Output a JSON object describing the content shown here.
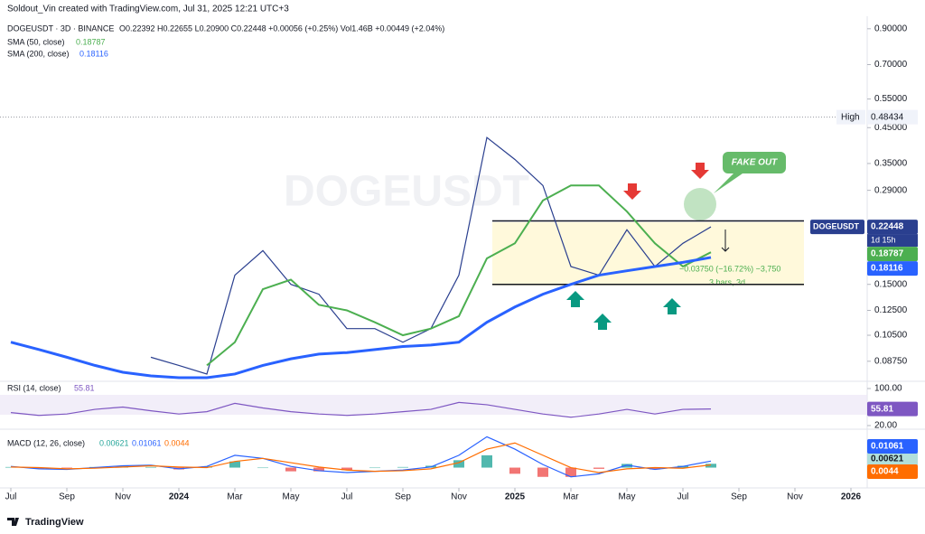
{
  "header": {
    "credit": "Soldout_Vin created with TradingView.com, Jul 31, 2025 12:21 UTC+3",
    "symbol": "DOGEUSDT · 3D · BINANCE",
    "ohlc": "O0.22392 H0.22655 L0.20900 C0.22448 +0.00056 (+0.25%) Vol1.46B +0.00449 (+2.04%)"
  },
  "footer": "TradingView",
  "chart_data": [
    {
      "type": "line",
      "watermark": "DOGEUSDT",
      "log_scale": true,
      "x": [
        "2023-07",
        "2023-08",
        "2023-09",
        "2023-10",
        "2023-11",
        "2023-12",
        "2024-01",
        "2024-02",
        "2024-03",
        "2024-04",
        "2024-05",
        "2024-06",
        "2024-07",
        "2024-08",
        "2024-09",
        "2024-10",
        "2024-11",
        "2024-12",
        "2025-01",
        "2025-02",
        "2025-03",
        "2025-04",
        "2025-05",
        "2025-06",
        "2025-07",
        "2025-08"
      ],
      "xticks": [
        {
          "value": "2023-07",
          "label": "Jul"
        },
        {
          "value": "2023-09",
          "label": "Sep"
        },
        {
          "value": "2023-11",
          "label": "Nov"
        },
        {
          "value": "2024-01",
          "label": "2024"
        },
        {
          "value": "2024-03",
          "label": "Mar"
        },
        {
          "value": "2024-05",
          "label": "May"
        },
        {
          "value": "2024-07",
          "label": "Jul"
        },
        {
          "value": "2024-09",
          "label": "Sep"
        },
        {
          "value": "2024-11",
          "label": "Nov"
        },
        {
          "value": "2025-01",
          "label": "2025"
        },
        {
          "value": "2025-03",
          "label": "Mar"
        },
        {
          "value": "2025-05",
          "label": "May"
        },
        {
          "value": "2025-07",
          "label": "Jul"
        },
        {
          "value": "2025-09",
          "label": "Sep"
        },
        {
          "value": "2025-11",
          "label": "Nov"
        },
        {
          "value": "2026-01",
          "label": "2026"
        }
      ],
      "ylim": [
        0.077,
        0.97
      ],
      "yticks": [
        {
          "value": 0.9,
          "label": "0.90000"
        },
        {
          "value": 0.7,
          "label": "0.70000"
        },
        {
          "value": 0.55,
          "label": "0.55000"
        },
        {
          "value": 0.45,
          "label": "0.45000"
        },
        {
          "value": 0.35,
          "label": "0.35000"
        },
        {
          "value": 0.29,
          "label": "0.29000"
        },
        {
          "value": 0.15,
          "label": "0.15000"
        },
        {
          "value": 0.125,
          "label": "0.12500"
        },
        {
          "value": 0.105,
          "label": "0.10500"
        },
        {
          "value": 0.0875,
          "label": "0.08750"
        }
      ],
      "series": [
        {
          "name": "DOGEUSDT",
          "color": "#2a3f8f",
          "values": [
            null,
            null,
            null,
            null,
            null,
            0.09,
            0.085,
            0.08,
            0.16,
            0.19,
            0.15,
            0.14,
            0.11,
            0.11,
            0.1,
            0.11,
            0.16,
            0.42,
            0.36,
            0.3,
            0.17,
            0.16,
            0.22,
            0.17,
            0.2,
            0.22448
          ]
        },
        {
          "name": "SMA (50, close)",
          "color": "#4caf50",
          "values": [
            null,
            null,
            null,
            null,
            null,
            null,
            null,
            0.085,
            0.1,
            0.145,
            0.155,
            0.13,
            0.125,
            0.115,
            0.105,
            0.11,
            0.12,
            0.18,
            0.2,
            0.27,
            0.3,
            0.3,
            0.25,
            0.2,
            0.17,
            0.18787
          ]
        },
        {
          "name": "SMA (200, close)",
          "color": "#2962ff",
          "values": [
            0.1,
            0.095,
            0.09,
            0.085,
            0.081,
            0.079,
            0.078,
            0.078,
            0.08,
            0.085,
            0.089,
            0.092,
            0.093,
            0.095,
            0.097,
            0.098,
            0.1,
            0.115,
            0.128,
            0.14,
            0.15,
            0.16,
            0.165,
            0.17,
            0.175,
            0.18116
          ]
        }
      ],
      "high": {
        "label": "High",
        "value": 0.48434
      },
      "levels": [
        0.234,
        0.15
      ],
      "countdown": "1d 15h",
      "annotations": {
        "fake_out": "FAKE OUT",
        "measure": "−0.03750 (−16.72%) −3,750",
        "bars": "3 bars, 3d"
      }
    },
    {
      "type": "line",
      "title": "RSI (14, close)",
      "ylim": [
        20,
        100
      ],
      "yticks": [
        {
          "value": 100,
          "label": "100.00"
        },
        {
          "value": 20,
          "label": "20.00"
        }
      ],
      "series": [
        {
          "color": "#7e57c2",
          "values": [
            48,
            42,
            45,
            55,
            60,
            52,
            45,
            50,
            68,
            58,
            50,
            45,
            42,
            45,
            50,
            55,
            70,
            65,
            55,
            45,
            38,
            45,
            55,
            45,
            55,
            55.81
          ]
        }
      ]
    },
    {
      "type": "line",
      "title": "MACD (12, 26, close)",
      "ylim": [
        -0.03,
        0.055
      ],
      "series": [
        {
          "kind": "histogram",
          "color": "#26a69a",
          "negative_color": "#ef5350",
          "values": [
            0.001,
            -0.002,
            -0.001,
            0.001,
            0.002,
            0.001,
            -0.003,
            0.002,
            0.01,
            0,
            -0.006,
            -0.006,
            -0.004,
            0,
            0.001,
            0.003,
            0.012,
            0.02,
            -0.01,
            -0.015,
            -0.015,
            -0.002,
            0.006,
            -0.003,
            0.003,
            0.00621
          ]
        },
        {
          "color": "#2962ff",
          "values": [
            0.002,
            -0.002,
            -0.003,
            0,
            0.003,
            0.004,
            -0.002,
            0.002,
            0.02,
            0.015,
            0.002,
            -0.005,
            -0.008,
            -0.006,
            -0.004,
            0.001,
            0.02,
            0.05,
            0.03,
            0.005,
            -0.015,
            -0.01,
            0.004,
            -0.003,
            0.002,
            0.01061
          ]
        },
        {
          "color": "#ff6d00",
          "values": [
            0.001,
            0,
            -0.002,
            -0.001,
            0.001,
            0.003,
            0.001,
            0,
            0.01,
            0.015,
            0.008,
            0.001,
            -0.004,
            -0.006,
            -0.005,
            -0.002,
            0.008,
            0.03,
            0.04,
            0.02,
            0,
            -0.008,
            -0.002,
            0,
            -0.001,
            0.0044
          ]
        }
      ]
    }
  ]
}
